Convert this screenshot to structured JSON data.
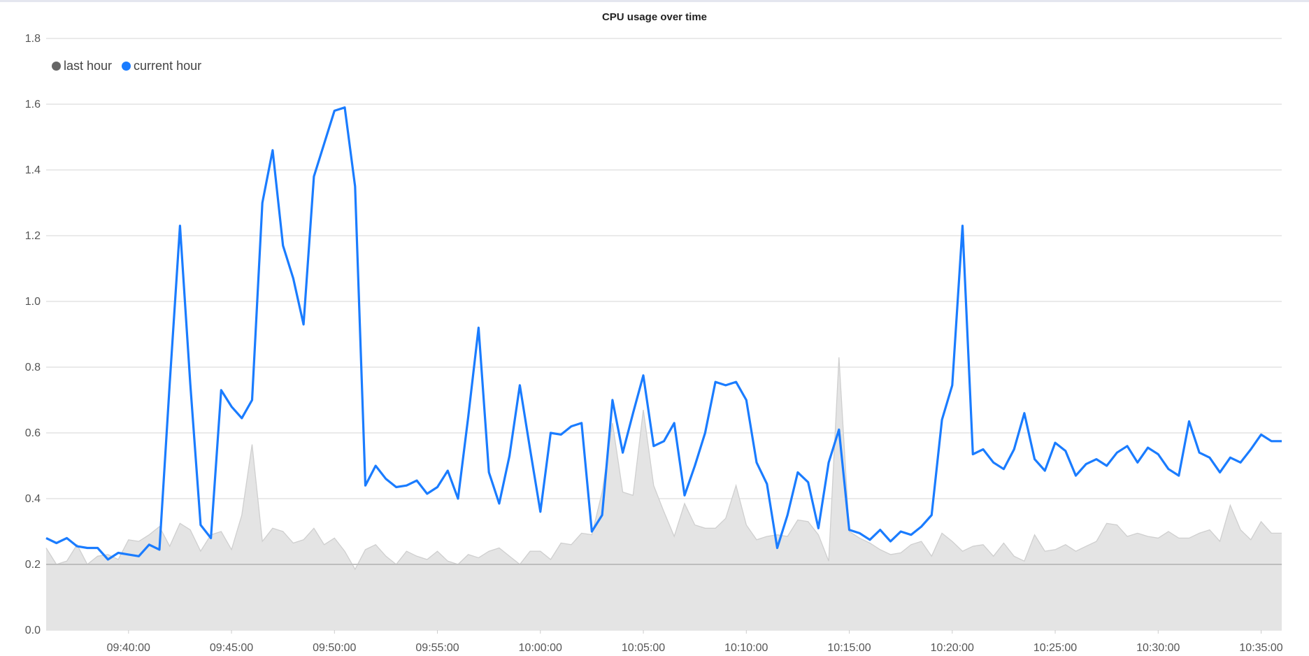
{
  "chart_data": {
    "type": "line",
    "title": "CPU usage over time",
    "xlabel": "",
    "ylabel": "",
    "ylim": [
      0,
      1.8
    ],
    "yticks": [
      "0.0",
      "0.2",
      "0.4",
      "0.6",
      "0.8",
      "1.0",
      "1.2",
      "1.4",
      "1.6",
      "1.8"
    ],
    "xticks": [
      "09:40:00",
      "09:45:00",
      "09:50:00",
      "09:55:00",
      "10:00:00",
      "10:05:00",
      "10:10:00",
      "10:15:00",
      "10:20:00",
      "10:25:00",
      "10:30:00",
      "10:35:00"
    ],
    "xlim": [
      "09:36:00",
      "10:36:00"
    ],
    "grid": true,
    "legend": "top-left",
    "threshold_line": 0.2,
    "x": [
      "09:36:00",
      "09:36:30",
      "09:37:00",
      "09:37:30",
      "09:38:00",
      "09:38:30",
      "09:39:00",
      "09:39:30",
      "09:40:00",
      "09:40:30",
      "09:41:00",
      "09:41:30",
      "09:42:00",
      "09:42:30",
      "09:43:00",
      "09:43:30",
      "09:44:00",
      "09:44:30",
      "09:45:00",
      "09:45:30",
      "09:46:00",
      "09:46:30",
      "09:47:00",
      "09:47:30",
      "09:48:00",
      "09:48:30",
      "09:49:00",
      "09:49:30",
      "09:50:00",
      "09:50:30",
      "09:51:00",
      "09:51:30",
      "09:52:00",
      "09:52:30",
      "09:53:00",
      "09:53:30",
      "09:54:00",
      "09:54:30",
      "09:55:00",
      "09:55:30",
      "09:56:00",
      "09:56:30",
      "09:57:00",
      "09:57:30",
      "09:58:00",
      "09:58:30",
      "09:59:00",
      "09:59:30",
      "10:00:00",
      "10:00:30",
      "10:01:00",
      "10:01:30",
      "10:02:00",
      "10:02:30",
      "10:03:00",
      "10:03:30",
      "10:04:00",
      "10:04:30",
      "10:05:00",
      "10:05:30",
      "10:06:00",
      "10:06:30",
      "10:07:00",
      "10:07:30",
      "10:08:00",
      "10:08:30",
      "10:09:00",
      "10:09:30",
      "10:10:00",
      "10:10:30",
      "10:11:00",
      "10:11:30",
      "10:12:00",
      "10:12:30",
      "10:13:00",
      "10:13:30",
      "10:14:00",
      "10:14:30",
      "10:15:00",
      "10:15:30",
      "10:16:00",
      "10:16:30",
      "10:17:00",
      "10:17:30",
      "10:18:00",
      "10:18:30",
      "10:19:00",
      "10:19:30",
      "10:20:00",
      "10:20:30",
      "10:21:00",
      "10:21:30",
      "10:22:00",
      "10:22:30",
      "10:23:00",
      "10:23:30",
      "10:24:00",
      "10:24:30",
      "10:25:00",
      "10:25:30",
      "10:26:00",
      "10:26:30",
      "10:27:00",
      "10:27:30",
      "10:28:00",
      "10:28:30",
      "10:29:00",
      "10:29:30",
      "10:30:00",
      "10:30:30",
      "10:31:00",
      "10:31:30",
      "10:32:00",
      "10:32:30",
      "10:33:00",
      "10:33:30",
      "10:34:00",
      "10:34:30",
      "10:35:00",
      "10:35:30",
      "10:36:00"
    ],
    "series": [
      {
        "name": "last hour",
        "type": "area",
        "color": "#cfcfcf",
        "legend_color": "#666666",
        "values": [
          0.25,
          0.2,
          0.21,
          0.26,
          0.2,
          0.225,
          0.23,
          0.215,
          0.275,
          0.27,
          0.29,
          0.315,
          0.255,
          0.325,
          0.305,
          0.24,
          0.29,
          0.3,
          0.245,
          0.35,
          0.565,
          0.27,
          0.31,
          0.3,
          0.265,
          0.275,
          0.31,
          0.26,
          0.28,
          0.24,
          0.185,
          0.245,
          0.26,
          0.225,
          0.2,
          0.24,
          0.225,
          0.215,
          0.24,
          0.21,
          0.2,
          0.23,
          0.22,
          0.24,
          0.25,
          0.225,
          0.2,
          0.24,
          0.24,
          0.215,
          0.265,
          0.26,
          0.295,
          0.29,
          0.42,
          0.63,
          0.42,
          0.41,
          0.67,
          0.44,
          0.36,
          0.285,
          0.385,
          0.32,
          0.31,
          0.31,
          0.34,
          0.44,
          0.32,
          0.275,
          0.285,
          0.29,
          0.285,
          0.335,
          0.33,
          0.29,
          0.21,
          0.83,
          0.3,
          0.28,
          0.265,
          0.245,
          0.23,
          0.235,
          0.26,
          0.27,
          0.225,
          0.295,
          0.27,
          0.24,
          0.255,
          0.26,
          0.225,
          0.265,
          0.225,
          0.21,
          0.29,
          0.24,
          0.245,
          0.26,
          0.24,
          0.255,
          0.27,
          0.325,
          0.32,
          0.285,
          0.295,
          0.285,
          0.28,
          0.3,
          0.28,
          0.28,
          0.295,
          0.305,
          0.27,
          0.38,
          0.305,
          0.275,
          0.33,
          0.295,
          0.295
        ]
      },
      {
        "name": "current hour",
        "type": "line",
        "color": "#1a7cff",
        "values": [
          0.28,
          0.265,
          0.28,
          0.255,
          0.25,
          0.25,
          0.215,
          0.235,
          0.23,
          0.225,
          0.26,
          0.245,
          0.75,
          1.23,
          0.75,
          0.32,
          0.28,
          0.73,
          0.68,
          0.645,
          0.7,
          1.3,
          1.46,
          1.17,
          1.07,
          0.93,
          1.38,
          1.48,
          1.58,
          1.59,
          1.35,
          0.44,
          0.5,
          0.46,
          0.435,
          0.44,
          0.455,
          0.415,
          0.435,
          0.485,
          0.4,
          0.65,
          0.92,
          0.48,
          0.385,
          0.53,
          0.745,
          0.55,
          0.36,
          0.6,
          0.595,
          0.62,
          0.63,
          0.3,
          0.35,
          0.7,
          0.54,
          0.66,
          0.775,
          0.56,
          0.575,
          0.63,
          0.41,
          0.5,
          0.6,
          0.755,
          0.745,
          0.755,
          0.7,
          0.51,
          0.445,
          0.25,
          0.35,
          0.48,
          0.45,
          0.31,
          0.51,
          0.61,
          0.305,
          0.295,
          0.275,
          0.305,
          0.27,
          0.3,
          0.29,
          0.315,
          0.35,
          0.64,
          0.745,
          1.23,
          0.535,
          0.55,
          0.51,
          0.49,
          0.55,
          0.66,
          0.52,
          0.485,
          0.57,
          0.545,
          0.47,
          0.505,
          0.52,
          0.5,
          0.54,
          0.56,
          0.51,
          0.555,
          0.535,
          0.49,
          0.47,
          0.635,
          0.54,
          0.525,
          0.48,
          0.525,
          0.51,
          0.55,
          0.595,
          0.575,
          0.575
        ]
      }
    ]
  }
}
